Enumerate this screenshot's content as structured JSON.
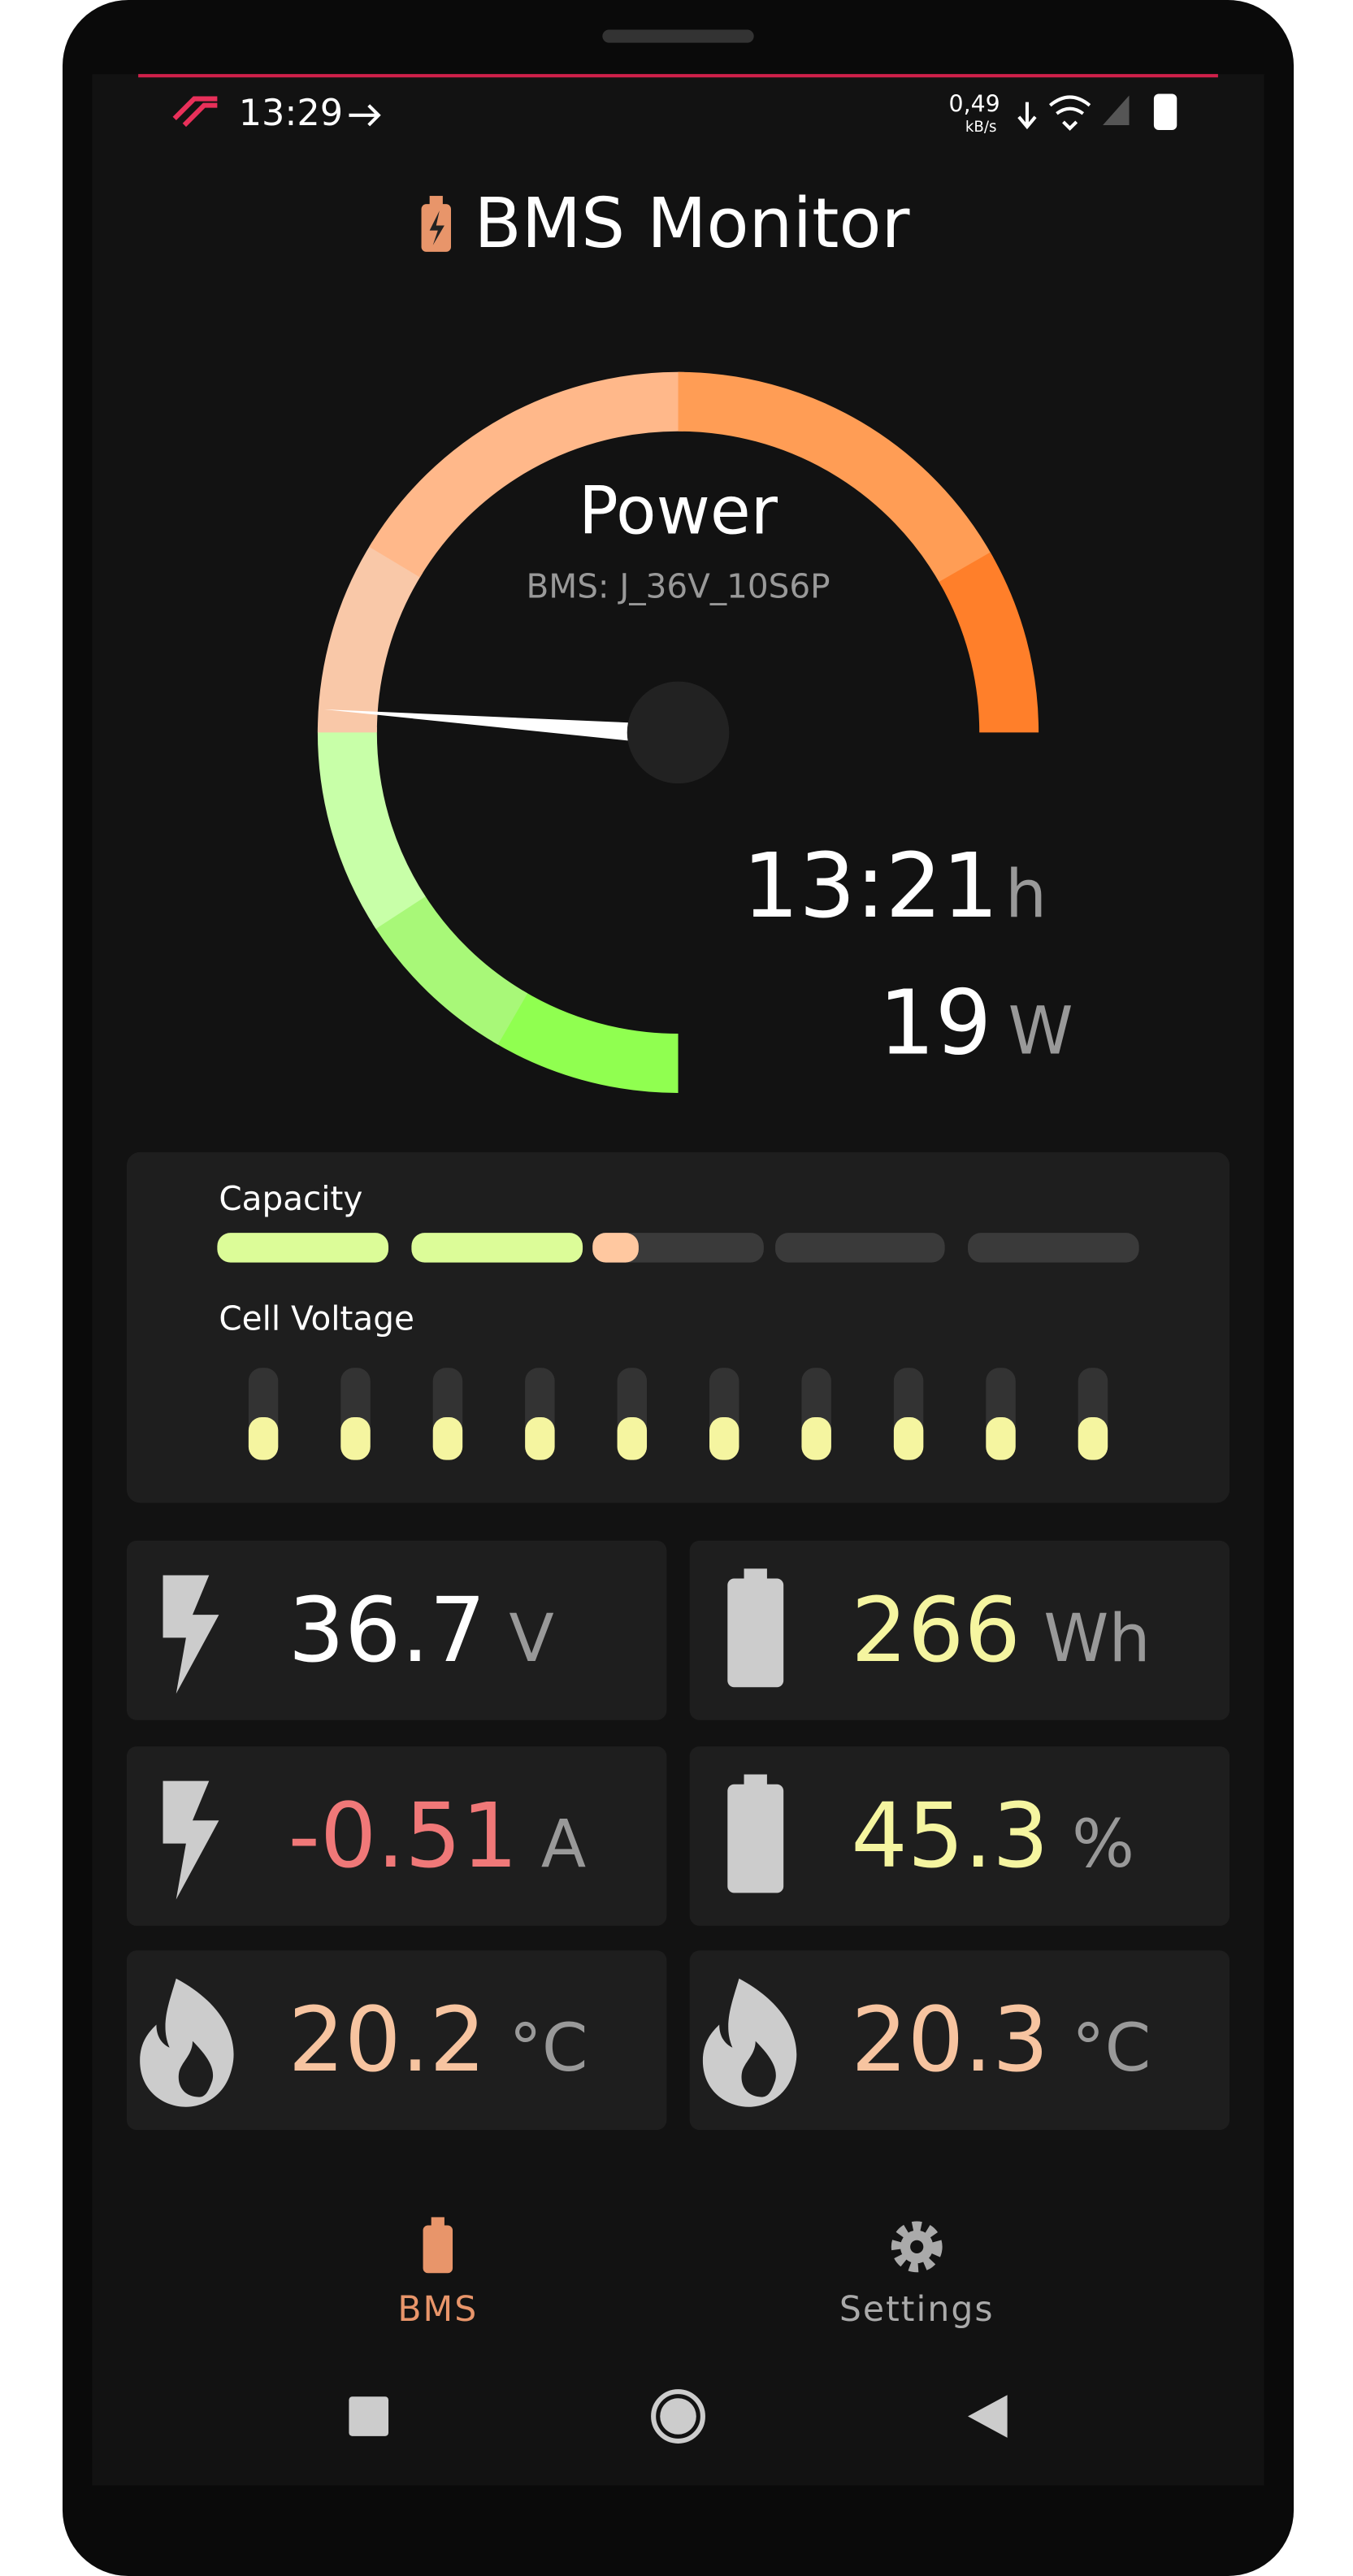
{
  "status_bar": {
    "time": "13:29",
    "net_speed": "0,49",
    "net_unit": "kB/s"
  },
  "header": {
    "title": "BMS Monitor"
  },
  "gauge": {
    "title": "Power",
    "subtitle": "BMS: J_36V_10S6P",
    "time_value": "13:21",
    "time_unit": "h",
    "power_value": "19",
    "power_unit": "W"
  },
  "pack": {
    "capacity_label": "Capacity",
    "cell_voltage_label": "Cell Voltage"
  },
  "tiles": [
    {
      "value": "36.7",
      "unit": "V"
    },
    {
      "value": "266",
      "unit": "Wh"
    },
    {
      "value": "-0.51",
      "unit": "A"
    },
    {
      "value": "45.3",
      "unit": "%"
    },
    {
      "value": "20.2",
      "unit": "°C"
    },
    {
      "value": "20.3",
      "unit": "°C"
    }
  ],
  "nav": {
    "items": [
      "BMS",
      "Settings"
    ]
  }
}
